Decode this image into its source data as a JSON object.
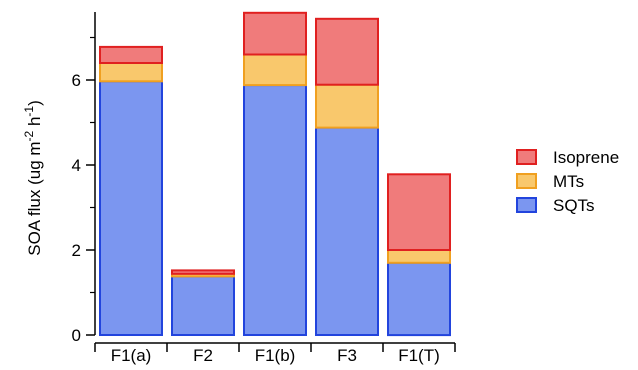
{
  "chart_data": {
    "type": "bar",
    "stacked": true,
    "categories": [
      "F1(a)",
      "F2",
      "F1(b)",
      "F3",
      "F1(T)"
    ],
    "series": [
      {
        "name": "SQTs",
        "values": [
          5.97,
          1.38,
          5.88,
          4.88,
          1.7
        ],
        "fill": "#7b96f0",
        "stroke": "#2244dd"
      },
      {
        "name": "MTs",
        "values": [
          0.43,
          0.06,
          0.72,
          1.01,
          0.3
        ],
        "fill": "#f9c86c",
        "stroke": "#f0a020"
      },
      {
        "name": "Isoprene",
        "values": [
          0.38,
          0.08,
          0.98,
          1.55,
          1.78
        ],
        "fill": "#f07b7b",
        "stroke": "#e02020"
      }
    ],
    "ylim": [
      0,
      7.6
    ],
    "yticks": [
      0,
      2,
      4,
      6
    ],
    "ylabel_parts": [
      "SOA flux (ug m",
      "-2",
      " h",
      "-1",
      ")"
    ],
    "legend": {
      "position": "right",
      "order": [
        "Isoprene",
        "MTs",
        "SQTs"
      ]
    },
    "grid": false
  }
}
